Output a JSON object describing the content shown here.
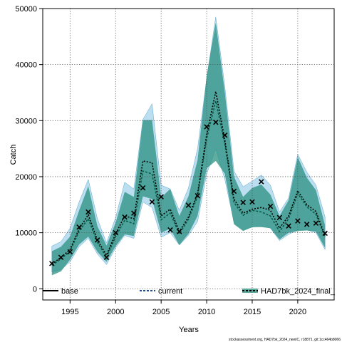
{
  "chart_data": {
    "type": "line",
    "xlabel": "Years",
    "ylabel": "Catch",
    "xlim": [
      1992,
      2024
    ],
    "ylim": [
      -2000,
      50000
    ],
    "xticks": [
      1995,
      2000,
      2005,
      2010,
      2015,
      2020
    ],
    "yticks": [
      0,
      10000,
      20000,
      30000,
      40000,
      50000
    ],
    "grid": true,
    "legend_position": "bottom",
    "footnote": "stockassessment.org, HAD7bk_2024_newIC, r18871, git:1cc464b8066",
    "colors": {
      "base_line": "#000000",
      "current_line": "#1f4e8c",
      "final_line": "#0a5c4a",
      "band_light": "#8ecae6",
      "band_dark": "#2a9080",
      "observed": "#000000"
    },
    "legend": [
      {
        "label": "base",
        "style": "solid"
      },
      {
        "label": "current",
        "style": "dotted"
      },
      {
        "label": "HAD7bk_2024_final_",
        "style": "dotted-band"
      }
    ],
    "years": [
      1993,
      1994,
      1995,
      1996,
      1997,
      1998,
      1999,
      2000,
      2001,
      2002,
      2003,
      2004,
      2005,
      2006,
      2007,
      2008,
      2009,
      2010,
      2011,
      2012,
      2013,
      2014,
      2015,
      2016,
      2017,
      2018,
      2019,
      2020,
      2021,
      2022,
      2023
    ],
    "series": [
      {
        "name": "current",
        "values": [
          4400,
          5600,
          7000,
          10700,
          13200,
          8700,
          6000,
          9800,
          13000,
          12500,
          22800,
          22500,
          13000,
          14200,
          10200,
          12800,
          17000,
          27500,
          35200,
          26500,
          16000,
          13500,
          14200,
          14500,
          14000,
          10800,
          13000,
          17500,
          15000,
          13800,
          9500
        ],
        "low": [
          3000,
          3400,
          4800,
          7500,
          9000,
          6200,
          4300,
          7300,
          9500,
          9000,
          15500,
          14500,
          9200,
          10000,
          7800,
          9500,
          12000,
          20500,
          25000,
          19500,
          11800,
          10500,
          11000,
          11200,
          10800,
          8600,
          9700,
          10500,
          10500,
          10000,
          7000
        ],
        "high": [
          7600,
          8400,
          10800,
          15500,
          19500,
          12500,
          8200,
          12700,
          19000,
          17800,
          30200,
          33000,
          18500,
          17800,
          14000,
          18000,
          25000,
          37500,
          48500,
          36000,
          21000,
          18200,
          19200,
          20300,
          18500,
          13700,
          16200,
          24000,
          20800,
          18500,
          12800
        ]
      },
      {
        "name": "HAD7bk_2024_final_",
        "values": [
          4200,
          5300,
          6700,
          10300,
          12500,
          8300,
          5600,
          9300,
          12200,
          11600,
          21000,
          20500,
          12300,
          13500,
          9800,
          12400,
          16500,
          26800,
          33500,
          25800,
          15400,
          13100,
          14000,
          13700,
          13000,
          10200,
          12500,
          17000,
          14600,
          13300,
          9200
        ],
        "low": [
          2400,
          3100,
          5200,
          7900,
          9300,
          6600,
          4800,
          7600,
          9700,
          9400,
          16500,
          16000,
          10000,
          10700,
          7800,
          9800,
          13000,
          21500,
          22800,
          20500,
          11500,
          10300,
          11000,
          11000,
          10800,
          8800,
          10000,
          10300,
          10400,
          10200,
          7300
        ],
        "high": [
          6700,
          7500,
          9300,
          14000,
          18300,
          11200,
          7700,
          11800,
          17300,
          16400,
          30100,
          30100,
          16300,
          17800,
          13000,
          16500,
          23000,
          38000,
          47500,
          35000,
          20000,
          16400,
          18000,
          18600,
          16800,
          13000,
          15800,
          23500,
          19800,
          17600,
          11300
        ]
      }
    ],
    "observed": [
      4500,
      5600,
      6600,
      11000,
      13700,
      8700,
      5600,
      10000,
      12800,
      13500,
      18000,
      15500,
      16400,
      10500,
      10200,
      14900,
      16600,
      28900,
      29700,
      27400,
      17400,
      15400,
      15500,
      19100,
      14700,
      12700,
      11200,
      12100,
      11500,
      11700,
      9900
    ]
  }
}
